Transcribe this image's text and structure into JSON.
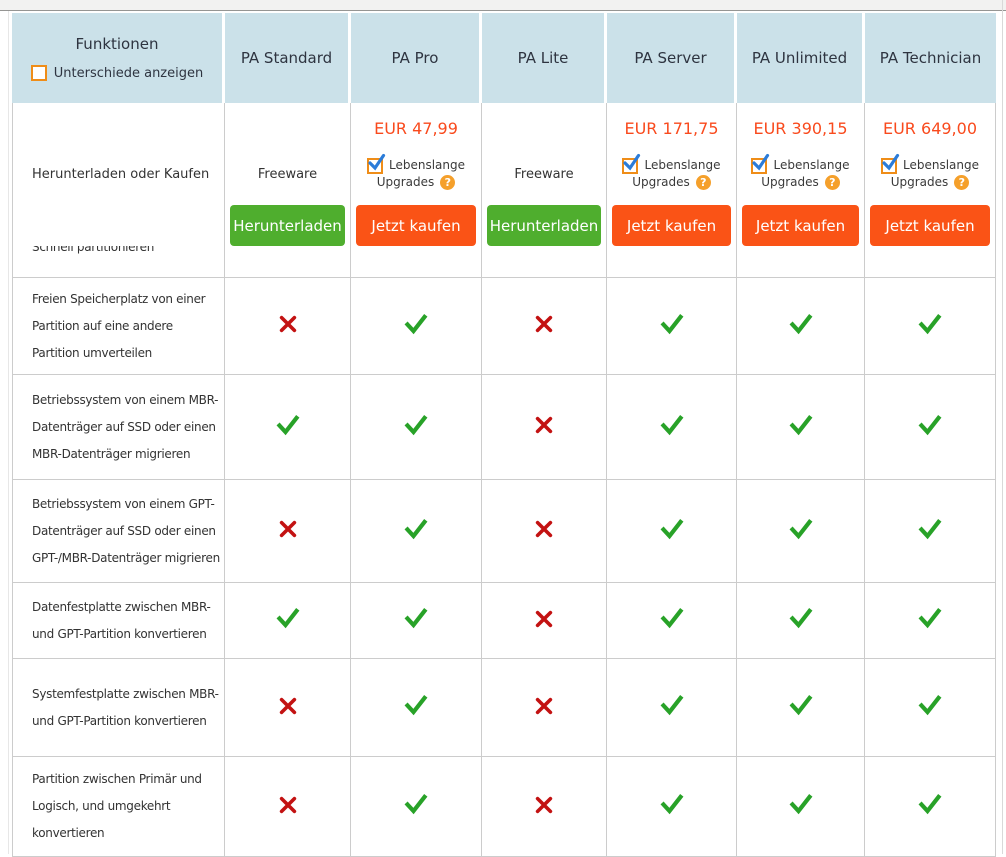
{
  "header": {
    "features_column_title": "Funktionen",
    "show_differences_label": "Unterschiede anzeigen",
    "show_differences_checked": false,
    "product_columns": [
      "PA Standard",
      "PA Pro",
      "PA Lite",
      "PA Server",
      "PA Unlimited",
      "PA Technician"
    ]
  },
  "purchase_row": {
    "label": "Herunterladen oder Kaufen",
    "lifetime_upgrades_line1": "Lebenslange",
    "lifetime_upgrades_line2": "Upgrades",
    "help_icon_glyph": "?",
    "products": [
      {
        "column": "PA Standard",
        "price_label": "Freeware",
        "button_label": "Herunterladen",
        "button_type": "download",
        "lifetime_upgrades_checked": null
      },
      {
        "column": "PA Pro",
        "price_label": "EUR 47,99",
        "button_label": "Jetzt kaufen",
        "button_type": "buy",
        "lifetime_upgrades_checked": true
      },
      {
        "column": "PA Lite",
        "price_label": "Freeware",
        "button_label": "Herunterladen",
        "button_type": "download",
        "lifetime_upgrades_checked": null
      },
      {
        "column": "PA Server",
        "price_label": "EUR 171,75",
        "button_label": "Jetzt kaufen",
        "button_type": "buy",
        "lifetime_upgrades_checked": true
      },
      {
        "column": "PA Unlimited",
        "price_label": "EUR 390,15",
        "button_label": "Jetzt kaufen",
        "button_type": "buy",
        "lifetime_upgrades_checked": true
      },
      {
        "column": "PA Technician",
        "price_label": "EUR 649,00",
        "button_label": "Jetzt kaufen",
        "button_type": "buy",
        "lifetime_upgrades_checked": true
      }
    ]
  },
  "feature_table": {
    "clipped_row_label": "Schnell partitionieren",
    "rows": [
      {
        "label": "Freien Speicherplatz von einer Partition auf eine andere Partition umverteilen",
        "label_lines": [
          "Freien Speicherplatz von einer",
          "Partition auf eine andere",
          "Partition umverteilen"
        ],
        "values": [
          "no",
          "yes",
          "no",
          "yes",
          "yes",
          "yes"
        ]
      },
      {
        "label": "Betriebssystem von einem MBR-Datenträger auf SSD oder einen MBR-Datenträger migrieren",
        "label_lines": [
          "Betriebssystem von einem MBR-",
          "Datenträger auf SSD oder einen",
          "MBR-Datenträger migrieren"
        ],
        "values": [
          "yes",
          "yes",
          "no",
          "yes",
          "yes",
          "yes"
        ]
      },
      {
        "label": "Betriebssystem von einem GPT-Datenträger auf SSD oder einen GPT-/MBR-Datenträger migrieren",
        "label_lines": [
          "Betriebssystem von einem GPT-",
          "Datenträger auf SSD oder einen",
          "GPT-/MBR-Datenträger migrieren"
        ],
        "values": [
          "no",
          "yes",
          "no",
          "yes",
          "yes",
          "yes"
        ]
      },
      {
        "label": "Datenfestplatte zwischen MBR- und GPT-Partition konvertieren",
        "label_lines": [
          "Datenfestplatte zwischen MBR-",
          "und GPT-Partition konvertieren"
        ],
        "values": [
          "yes",
          "yes",
          "no",
          "yes",
          "yes",
          "yes"
        ]
      },
      {
        "label": "Systemfestplatte zwischen MBR- und GPT-Partition konvertieren",
        "label_lines": [
          "Systemfestplatte zwischen MBR-",
          "und GPT-Partition konvertieren"
        ],
        "values": [
          "no",
          "yes",
          "no",
          "yes",
          "yes",
          "yes"
        ]
      },
      {
        "label": "Partition zwischen Primär und Logisch, und umgekehrt konvertieren",
        "label_lines": [
          "Partition zwischen Primär und",
          "Logisch, und umgekehrt",
          "konvertieren"
        ],
        "values": [
          "no",
          "yes",
          "no",
          "yes",
          "yes",
          "yes"
        ]
      }
    ]
  },
  "colors": {
    "header_bg": "#cbe1e9",
    "price_text": "#f94a1d",
    "buy_button": "#fa5316",
    "download_button": "#4fae2e",
    "check_mark": "#28a228",
    "cross_mark": "#c31212",
    "checkbox_border": "#ef8d18",
    "checkbox_check": "#2b7cd9",
    "help_icon_bg": "#f5a02b"
  }
}
